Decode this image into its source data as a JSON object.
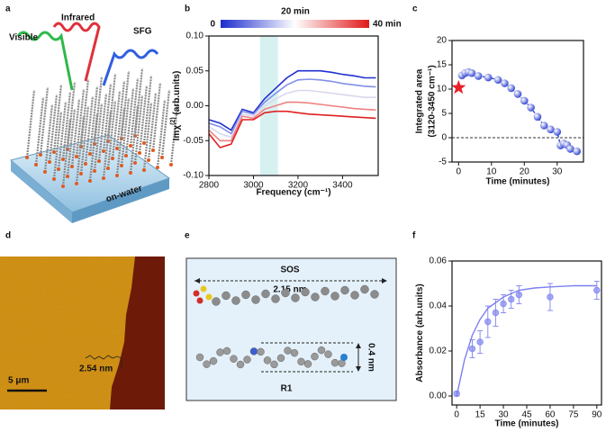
{
  "chart_data": [
    {
      "type": "line",
      "panel": "b",
      "xlabel": "Frequency (cm⁻¹)",
      "ylabel": [
        "Imχ",
        "(2)",
        " (arb.units)"
      ],
      "x": [
        2800,
        2850,
        2900,
        2950,
        3000,
        3050,
        3100,
        3150,
        3200,
        3250,
        3300,
        3350,
        3400,
        3450,
        3500,
        3550
      ],
      "series": [
        {
          "color": "#2030d0",
          "values": [
            -0.02,
            -0.025,
            -0.035,
            -0.005,
            -0.01,
            0.01,
            0.025,
            0.04,
            0.05,
            0.05,
            0.05,
            0.048,
            0.045,
            0.043,
            0.04,
            0.04
          ]
        },
        {
          "color": "#8090e8",
          "values": [
            -0.025,
            -0.03,
            -0.04,
            -0.008,
            -0.012,
            0.005,
            0.018,
            0.03,
            0.037,
            0.038,
            0.037,
            0.035,
            0.032,
            0.03,
            0.028,
            0.027
          ]
        },
        {
          "color": "#d8d8ee",
          "values": [
            -0.03,
            -0.04,
            -0.045,
            -0.012,
            -0.015,
            0,
            0.01,
            0.018,
            0.022,
            0.022,
            0.02,
            0.018,
            0.016,
            0.014,
            0.012,
            0.012
          ]
        },
        {
          "color": "#f08080",
          "values": [
            -0.035,
            -0.05,
            -0.05,
            -0.015,
            -0.018,
            -0.005,
            0,
            0.005,
            0.005,
            0.004,
            0.002,
            0,
            -0.002,
            -0.004,
            -0.005,
            -0.006
          ]
        },
        {
          "color": "#e02020",
          "values": [
            -0.04,
            -0.06,
            -0.055,
            -0.02,
            -0.02,
            -0.01,
            -0.008,
            -0.008,
            -0.01,
            -0.012,
            -0.013,
            -0.014,
            -0.015,
            -0.016,
            -0.017,
            -0.018
          ]
        }
      ],
      "xlim": [
        2800,
        3560
      ],
      "xticks": [
        2800,
        3000,
        3200,
        3400
      ],
      "ylim": [
        -0.1,
        0.1
      ],
      "yticks": [
        {
          "value": -0.1,
          "label": "-0.10"
        },
        {
          "value": -0.05,
          "label": "-0.05"
        },
        {
          "value": 0,
          "label": "0.00"
        },
        {
          "value": 0.05,
          "label": "0.05"
        },
        {
          "value": 0.1,
          "label": "0.10"
        }
      ],
      "highlight": [
        3030,
        3110
      ],
      "colorbar": {
        "labels": [
          "0",
          "20 min",
          "40 min"
        ],
        "colors": [
          "#1a2ccc",
          "#ffffff",
          "#e01818"
        ]
      }
    },
    {
      "type": "scatter",
      "panel": "c",
      "xlabel": "Time (minutes)",
      "ylabel": [
        "Integrated area",
        "(3120-3450 cm⁻¹)"
      ],
      "series": [
        {
          "color": "#e8202a",
          "marker": "star",
          "x": [
            0
          ],
          "values": [
            10.3
          ]
        },
        {
          "color": "#2a3fd0",
          "marker": "sphere",
          "line": "dash",
          "x": [
            1,
            2,
            3,
            4,
            6,
            9,
            12,
            14,
            16,
            18,
            20,
            22,
            24,
            26,
            28,
            30,
            31,
            32,
            33,
            34,
            36
          ],
          "values": [
            12.8,
            13.3,
            13.5,
            13.3,
            12.7,
            12.4,
            11.9,
            11.2,
            10.2,
            9.0,
            7.6,
            6.2,
            4.3,
            2.5,
            1.7,
            1.2,
            -1.6,
            -1.2,
            -1.5,
            -2.3,
            -2.8
          ]
        }
      ],
      "xlim": [
        -2,
        38
      ],
      "xticks": [
        0,
        10,
        20,
        30
      ],
      "ylim": [
        -5,
        20
      ],
      "yticks": [
        -5,
        0,
        5,
        10,
        15,
        20
      ],
      "zero_line": true
    },
    {
      "type": "scatter",
      "panel": "f",
      "xlabel": "Time (minutes)",
      "ylabel": [
        "Absorbance (arb.units)"
      ],
      "series": [
        {
          "color": "#8a8ff0",
          "marker": "circle",
          "x": [
            0,
            10,
            15,
            20,
            25,
            30,
            35,
            40,
            60,
            90
          ],
          "values": [
            0.001,
            0.021,
            0.024,
            0.033,
            0.037,
            0.041,
            0.043,
            0.045,
            0.044,
            0.047
          ],
          "errors": [
            0.001,
            0.004,
            0.005,
            0.007,
            0.006,
            0.004,
            0.004,
            0.004,
            0.006,
            0.004
          ]
        },
        {
          "color": "#7c7ff0",
          "line": "solid",
          "x": [
            0,
            5,
            10,
            15,
            20,
            30,
            40,
            50,
            60,
            75,
            90
          ],
          "values": [
            0,
            0.016,
            0.027,
            0.034,
            0.039,
            0.044,
            0.047,
            0.048,
            0.0485,
            0.049,
            0.049
          ]
        }
      ],
      "xlim": [
        -3,
        93
      ],
      "xticks": [
        0,
        15,
        30,
        45,
        60,
        75,
        90
      ],
      "ylim": [
        -0.004,
        0.06
      ],
      "yticks": [
        {
          "value": 0,
          "label": "0.00"
        },
        {
          "value": 0.02,
          "label": "0.02"
        },
        {
          "value": 0.04,
          "label": "0.04"
        },
        {
          "value": 0.06,
          "label": "0.06"
        }
      ]
    }
  ],
  "panels": {
    "a": {
      "letter": "a",
      "beams": [
        "Visible",
        "Infrared",
        "SFG"
      ],
      "substrate": "on-water"
    },
    "d": {
      "letter": "d",
      "scale_bar": "5 μm",
      "step_height": "2.54 nm"
    },
    "e": {
      "letter": "e",
      "sos": "SOS",
      "sos_length": "2.15 nm",
      "r1": "R1",
      "r1_thickness": "0.4 nm"
    }
  }
}
